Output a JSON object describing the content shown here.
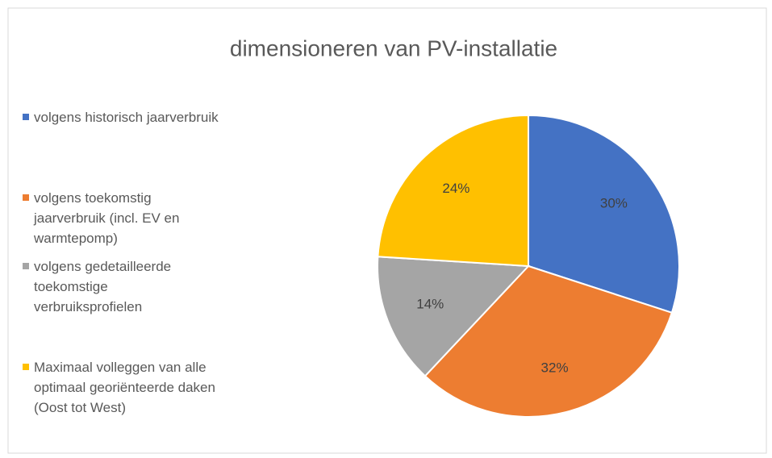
{
  "chart_data": {
    "type": "pie",
    "title": "dimensioneren van PV-installatie",
    "categories": [
      "volgens historisch jaarverbruik",
      "volgens toekomstig jaarverbruik (incl. EV en warmtepomp)",
      "volgens gedetailleerde toekomstige verbruiksprofielen",
      "Maximaal volleggen van alle optimaal georiënteerde daken (Oost tot West)"
    ],
    "values": [
      30,
      32,
      14,
      24
    ],
    "value_labels": [
      "30%",
      "32%",
      "14%",
      "24%"
    ],
    "colors": [
      "#4472c4",
      "#ed7d31",
      "#a5a5a5",
      "#ffc000"
    ],
    "legend": "left"
  }
}
